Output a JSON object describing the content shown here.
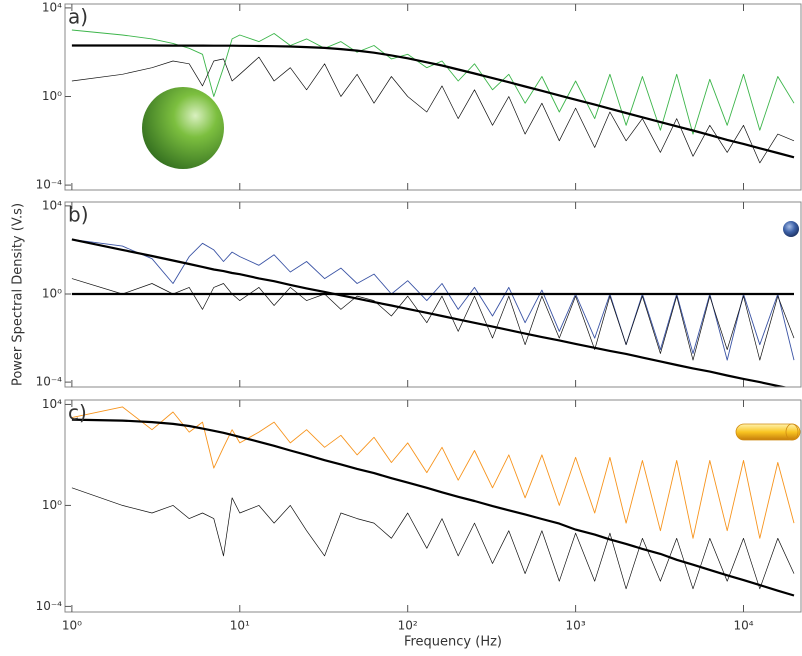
{
  "chart_data": [
    {
      "type": "line",
      "title": "a)",
      "xscale": "log",
      "yscale": "log",
      "x": [
        1,
        2,
        3,
        4,
        5,
        6,
        7,
        8,
        9,
        10,
        13,
        16,
        20,
        25,
        32,
        40,
        50,
        63,
        80,
        100,
        130,
        160,
        200,
        250,
        320,
        400,
        500,
        630,
        800,
        1000,
        1300,
        1600,
        2000,
        2500,
        3200,
        4000,
        5000,
        6300,
        8000,
        10000,
        12500,
        16000,
        20000
      ],
      "xlim": [
        0.91,
        22000
      ],
      "xticks": [
        1,
        10,
        100,
        1000,
        10000
      ],
      "ylim": [
        6e-05,
        15000
      ],
      "yticks": [
        {
          "value": 10000,
          "label": "10⁴"
        },
        {
          "value": 1,
          "label": "10⁰"
        },
        {
          "value": 0.0001,
          "label": "10⁻⁴"
        }
      ],
      "series": [
        {
          "color": "#3cb54a",
          "width": 0.9,
          "values": [
            1000,
            600,
            400,
            250,
            150,
            80,
            1,
            20,
            400,
            600,
            300,
            700,
            200,
            400,
            150,
            300,
            100,
            200,
            50,
            80,
            20,
            40,
            5,
            30,
            2,
            10,
            0.5,
            8,
            0.2,
            5,
            0.1,
            10,
            0.05,
            8,
            0.03,
            10,
            0.02,
            6,
            0.05,
            10,
            0.03,
            8,
            0.5
          ]
        },
        {
          "color": "#111111",
          "width": 0.7,
          "values": [
            5,
            10,
            20,
            40,
            30,
            3,
            40,
            50,
            5,
            10,
            60,
            5,
            20,
            2,
            30,
            1,
            10,
            0.5,
            8,
            1,
            0.2,
            3,
            0.1,
            2,
            0.05,
            1,
            0.02,
            0.5,
            0.01,
            0.3,
            0.005,
            0.2,
            0.01,
            0.1,
            0.003,
            0.1,
            0.002,
            0.05,
            0.003,
            0.05,
            0.001,
            0.02,
            0.01
          ]
        },
        {
          "color": "#000000",
          "width": 2.2,
          "values": [
            200,
            200,
            200,
            199,
            199,
            198,
            197,
            196,
            196,
            195,
            191,
            187,
            180,
            170,
            156,
            138,
            118,
            95,
            72,
            53,
            35,
            25,
            16.5,
            10.9,
            6.8,
            4.4,
            2.84,
            1.8,
            1.12,
            0.72,
            0.43,
            0.28,
            0.18,
            0.115,
            0.07,
            0.045,
            0.029,
            0.018,
            0.011,
            0.0072,
            0.0046,
            0.0028,
            0.0018
          ]
        }
      ]
    },
    {
      "type": "line",
      "title": "b)",
      "xscale": "log",
      "yscale": "log",
      "ylabel": "Power Spectral Density (V.s)",
      "x": [
        1,
        2,
        3,
        4,
        5,
        6,
        7,
        8,
        9,
        10,
        13,
        16,
        20,
        25,
        32,
        40,
        50,
        63,
        80,
        100,
        130,
        160,
        200,
        250,
        320,
        400,
        500,
        630,
        800,
        1000,
        1300,
        1600,
        2000,
        2500,
        3200,
        4000,
        5000,
        6300,
        8000,
        10000,
        12500,
        16000,
        20000
      ],
      "xlim": [
        0.91,
        22000
      ],
      "xticks": [
        1,
        10,
        100,
        1000,
        10000
      ],
      "ylim": [
        6e-05,
        15000
      ],
      "yticks": [
        {
          "value": 10000,
          "label": "10⁴"
        },
        {
          "value": 1,
          "label": "10⁰"
        },
        {
          "value": 0.0001,
          "label": "10⁻⁴"
        }
      ],
      "series": [
        {
          "color": "#3b54a5",
          "width": 0.9,
          "values": [
            300,
            150,
            40,
            3,
            50,
            200,
            100,
            30,
            80,
            50,
            20,
            60,
            10,
            30,
            5,
            15,
            3,
            8,
            1,
            4,
            0.5,
            3,
            0.2,
            2,
            0.1,
            2,
            0.05,
            1.5,
            0.02,
            1,
            0.01,
            1,
            0.005,
            1,
            0.003,
            1,
            0.002,
            1,
            0.001,
            1,
            0.005,
            1,
            0.001
          ]
        },
        {
          "color": "#111111",
          "width": 0.7,
          "values": [
            5,
            1,
            3,
            1,
            2,
            0.2,
            2,
            3,
            1,
            0.5,
            2,
            0.3,
            2,
            0.5,
            1,
            0.2,
            0.8,
            0.5,
            0.1,
            0.8,
            0.05,
            0.8,
            0.02,
            0.8,
            0.01,
            0.8,
            0.005,
            0.8,
            0.01,
            0.8,
            0.003,
            0.8,
            0.005,
            0.8,
            0.002,
            0.8,
            0.001,
            0.8,
            0.003,
            0.8,
            0.001,
            0.8,
            0.01
          ]
        },
        {
          "color": "#000000",
          "width": 2.2,
          "values": [
            300,
            100,
            53,
            33,
            23,
            17,
            13,
            11,
            9,
            7.9,
            5.1,
            3.8,
            2.6,
            1.8,
            1.25,
            0.87,
            0.62,
            0.43,
            0.3,
            0.21,
            0.14,
            0.1,
            0.07,
            0.049,
            0.033,
            0.023,
            0.016,
            0.011,
            0.0078,
            0.0054,
            0.0036,
            0.0026,
            0.0019,
            0.0013,
            0.00087,
            0.0006,
            0.00042,
            0.0003,
            0.0002,
            0.00014,
            0.0001,
            6.7e-05,
            4.7e-05
          ]
        },
        {
          "color": "#000000",
          "width": 2.2,
          "values": [
            1,
            1,
            1,
            1,
            1,
            1,
            1,
            1,
            1,
            1,
            1,
            1,
            1,
            1,
            1,
            1,
            1,
            1,
            1,
            1,
            1,
            1,
            1,
            1,
            1,
            1,
            1,
            1,
            1,
            1,
            1,
            1,
            1,
            1,
            1,
            1,
            1,
            1,
            1,
            1,
            1,
            1,
            1
          ]
        }
      ]
    },
    {
      "type": "line",
      "title": "c)",
      "xscale": "log",
      "yscale": "log",
      "xlabel": "Frequency (Hz)",
      "x": [
        1,
        2,
        3,
        4,
        5,
        6,
        7,
        8,
        9,
        10,
        13,
        16,
        20,
        25,
        32,
        40,
        50,
        63,
        80,
        100,
        130,
        160,
        200,
        250,
        320,
        400,
        500,
        630,
        800,
        1000,
        1300,
        1600,
        2000,
        2500,
        3200,
        4000,
        5000,
        6300,
        8000,
        10000,
        12500,
        16000,
        20000
      ],
      "xlim": [
        0.91,
        22000
      ],
      "xticks": [
        {
          "value": 1,
          "label": "10⁰"
        },
        {
          "value": 10,
          "label": "10¹"
        },
        {
          "value": 100,
          "label": "10²"
        },
        {
          "value": 1000,
          "label": "10³"
        },
        {
          "value": 10000,
          "label": "10⁴"
        }
      ],
      "ylim": [
        6e-05,
        15000
      ],
      "yticks": [
        {
          "value": 10000,
          "label": "10⁴"
        },
        {
          "value": 1,
          "label": "10⁰"
        },
        {
          "value": 0.0001,
          "label": "10⁻⁴"
        }
      ],
      "series": [
        {
          "color": "#f7941d",
          "width": 0.9,
          "values": [
            3000,
            8000,
            1000,
            5000,
            800,
            2000,
            30,
            200,
            1000,
            300,
            800,
            2000,
            300,
            1000,
            200,
            600,
            100,
            500,
            50,
            300,
            20,
            200,
            10,
            150,
            5,
            100,
            2,
            100,
            1,
            80,
            0.5,
            80,
            0.2,
            60,
            0.1,
            60,
            0.05,
            60,
            0.1,
            60,
            0.05,
            50,
            0.2
          ]
        },
        {
          "color": "#111111",
          "width": 0.7,
          "values": [
            5,
            1,
            0.5,
            1,
            0.3,
            0.5,
            0.3,
            0.01,
            2,
            0.5,
            1,
            0.2,
            1,
            0.1,
            0.01,
            0.5,
            0.3,
            0.2,
            0.05,
            0.5,
            0.02,
            0.3,
            0.01,
            0.2,
            0.005,
            0.1,
            0.002,
            0.1,
            0.001,
            0.08,
            0.001,
            0.08,
            0.0005,
            0.05,
            0.001,
            0.05,
            0.0005,
            0.05,
            0.001,
            0.05,
            0.0005,
            0.05,
            0.002
          ]
        },
        {
          "color": "#000000",
          "width": 2.2,
          "values": [
            2500,
            2300,
            2000,
            1700,
            1400,
            1100,
            900,
            750,
            620,
            520,
            330,
            230,
            150,
            100,
            62,
            42,
            28,
            19,
            12,
            8,
            5,
            3.3,
            2.2,
            1.5,
            0.94,
            0.64,
            0.44,
            0.29,
            0.19,
            0.11,
            0.07,
            0.045,
            0.03,
            0.019,
            0.012,
            0.007,
            0.0045,
            0.0028,
            0.0017,
            0.0011,
            0.0007,
            0.00042,
            0.00027
          ]
        }
      ]
    }
  ]
}
